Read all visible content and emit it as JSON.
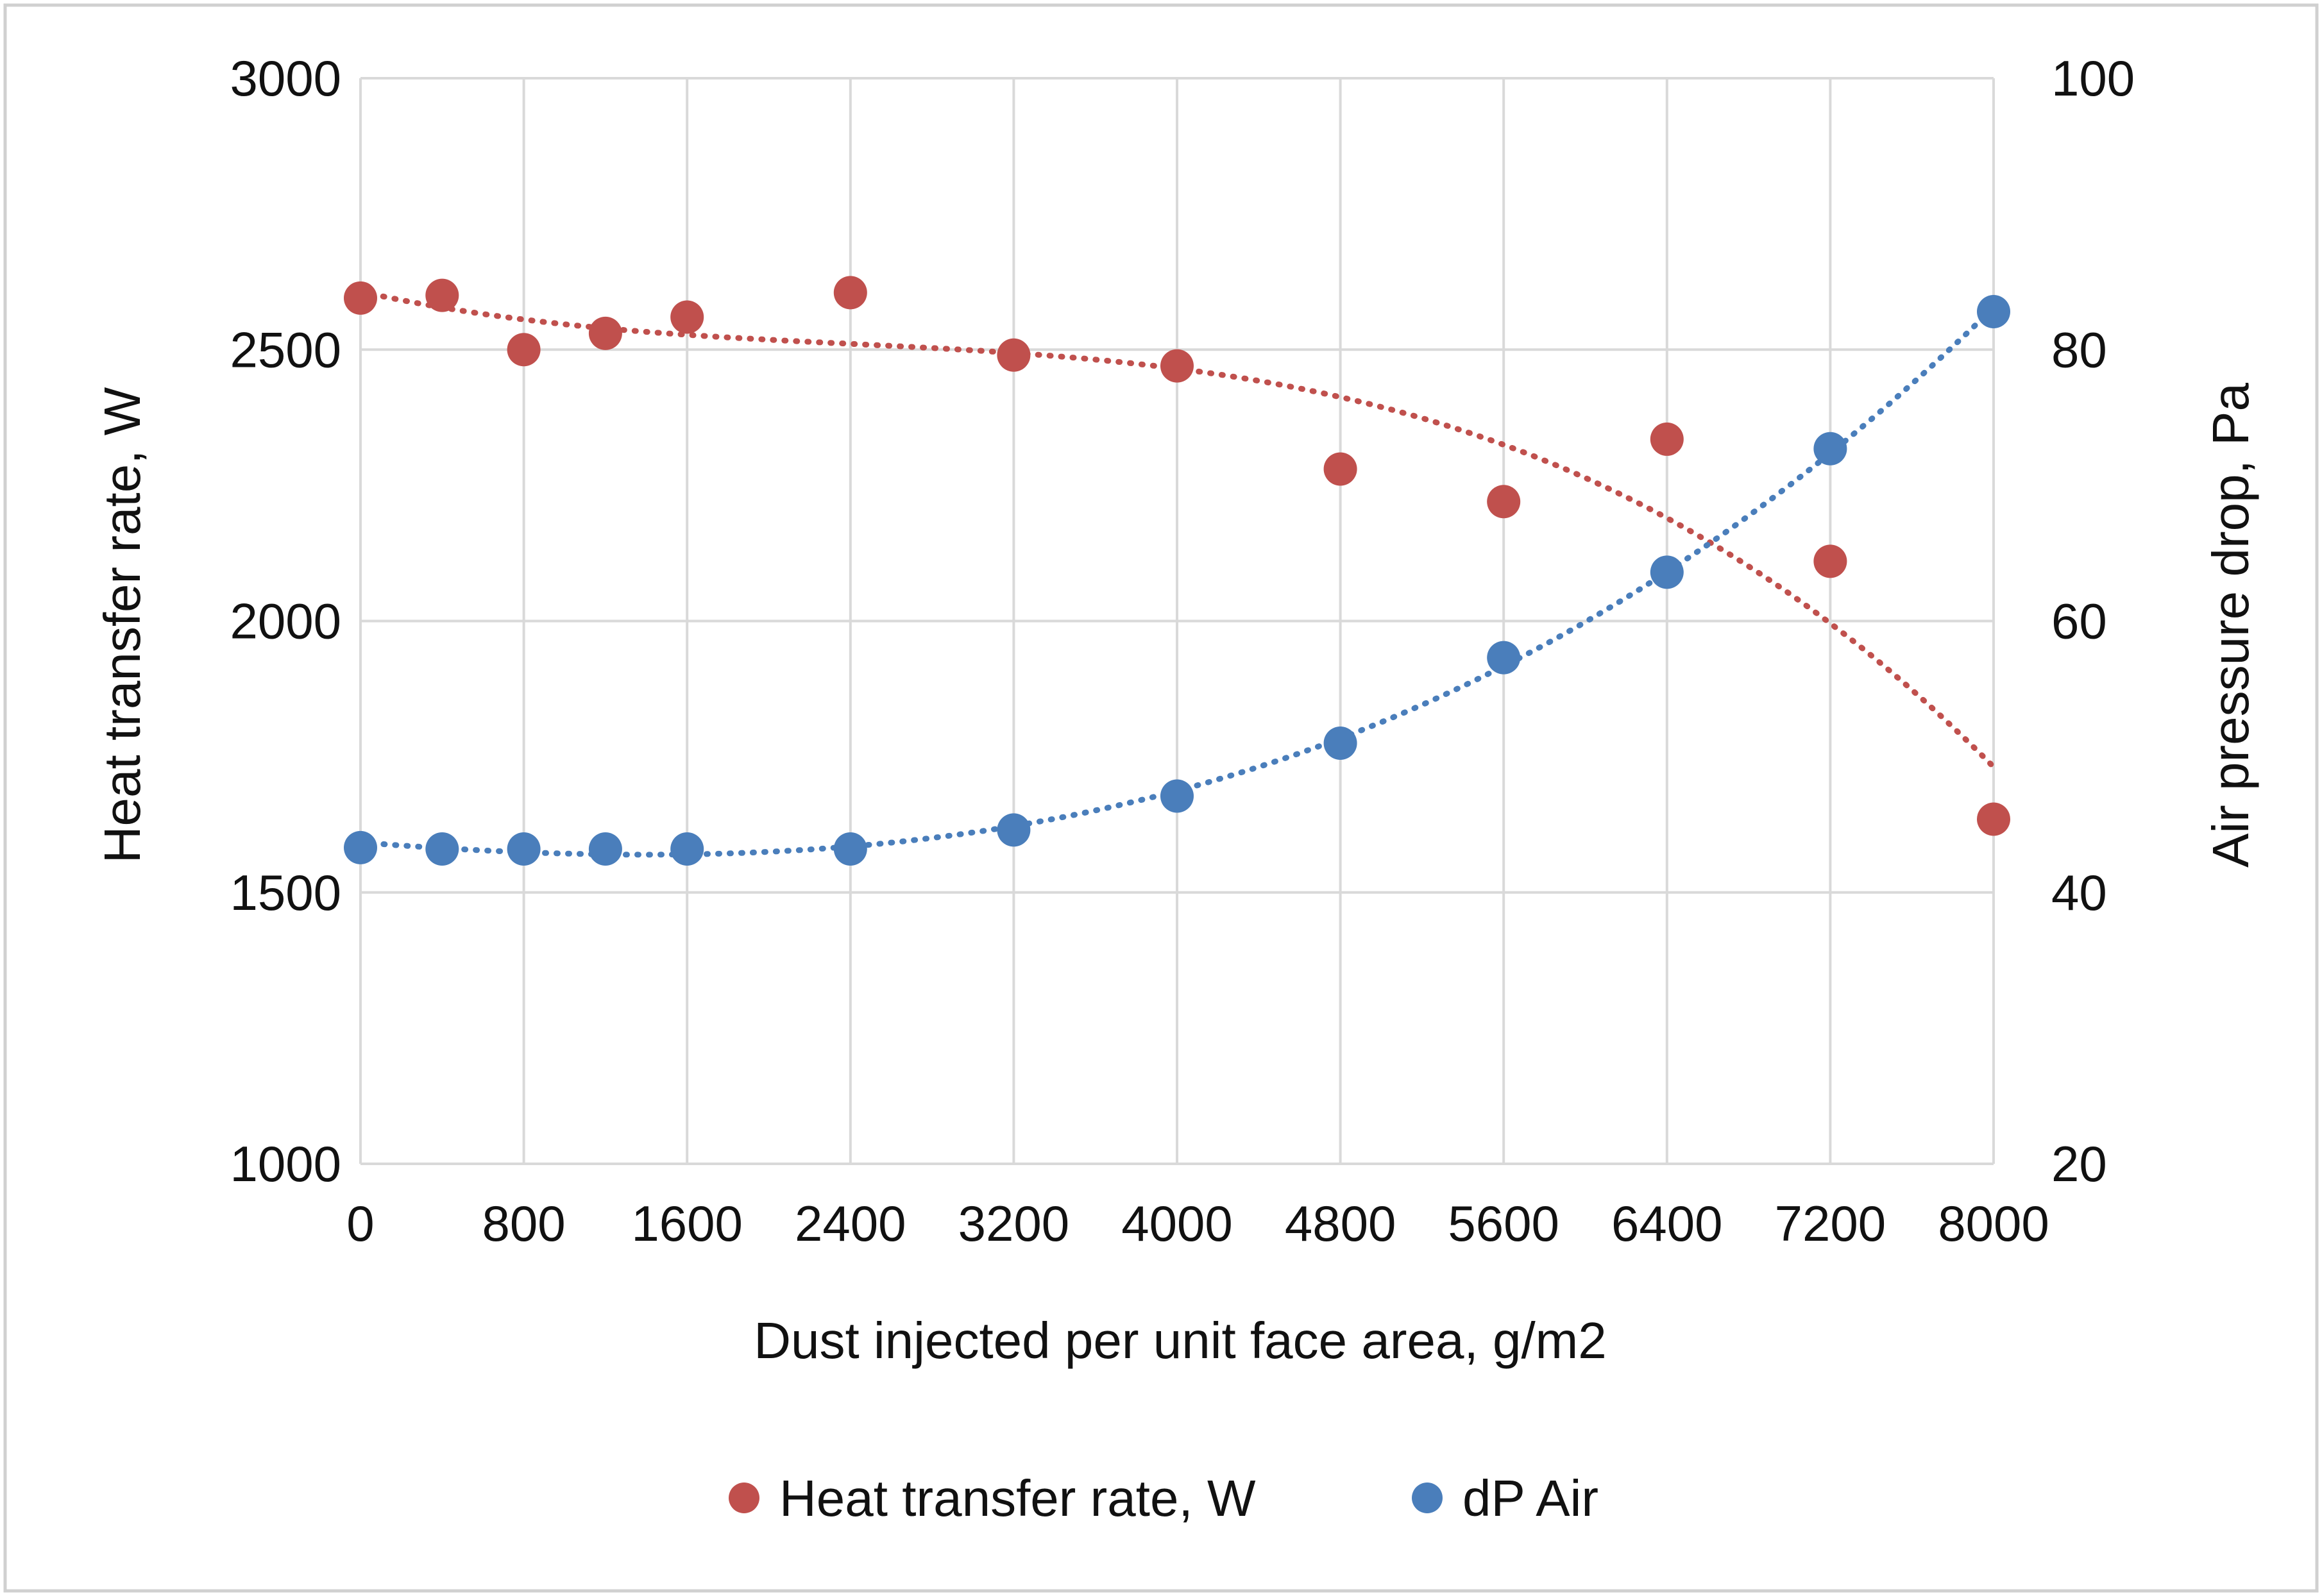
{
  "chart_data": {
    "type": "scatter",
    "title": "",
    "xlabel": "Dust injected per unit face area, g/m2",
    "ylabel": "Heat transfer rate, W",
    "y2label": "Air pressure drop, Pa",
    "xlim": [
      0,
      8000
    ],
    "ylim": [
      1000,
      3000
    ],
    "y2lim": [
      20,
      100
    ],
    "x_ticks": [
      "0",
      "800",
      "1600",
      "2400",
      "3200",
      "4000",
      "4800",
      "5600",
      "6400",
      "7200",
      "8000"
    ],
    "y_ticks": [
      "1000",
      "1500",
      "2000",
      "2500",
      "3000"
    ],
    "y2_ticks": [
      "20",
      "40",
      "60",
      "80",
      "100"
    ],
    "grid": true,
    "legend_position": "bottom",
    "series": [
      {
        "name": "Heat transfer rate, W",
        "axis": "left",
        "color": "#c0504d",
        "trendline": "polynomial dotted",
        "points": [
          {
            "x": 0,
            "y": 2595
          },
          {
            "x": 400,
            "y": 2600
          },
          {
            "x": 800,
            "y": 2500
          },
          {
            "x": 1200,
            "y": 2530
          },
          {
            "x": 1600,
            "y": 2560
          },
          {
            "x": 2400,
            "y": 2605
          },
          {
            "x": 3200,
            "y": 2490
          },
          {
            "x": 4000,
            "y": 2470
          },
          {
            "x": 4800,
            "y": 2280
          },
          {
            "x": 5600,
            "y": 2220
          },
          {
            "x": 6400,
            "y": 2335
          },
          {
            "x": 7200,
            "y": 2110
          },
          {
            "x": 8000,
            "y": 1635
          }
        ]
      },
      {
        "name": "dP Air",
        "axis": "right",
        "color": "#4a7ebb",
        "trendline": "polynomial dotted",
        "points": [
          {
            "x": 0,
            "y": 43.3
          },
          {
            "x": 400,
            "y": 43.2
          },
          {
            "x": 800,
            "y": 43.2
          },
          {
            "x": 1200,
            "y": 43.2
          },
          {
            "x": 1600,
            "y": 43.2
          },
          {
            "x": 2400,
            "y": 43.2
          },
          {
            "x": 3200,
            "y": 44.6
          },
          {
            "x": 4000,
            "y": 47.1
          },
          {
            "x": 4800,
            "y": 51.0
          },
          {
            "x": 5600,
            "y": 57.3
          },
          {
            "x": 6400,
            "y": 63.6
          },
          {
            "x": 7200,
            "y": 72.7
          },
          {
            "x": 8000,
            "y": 82.8
          }
        ]
      }
    ]
  }
}
